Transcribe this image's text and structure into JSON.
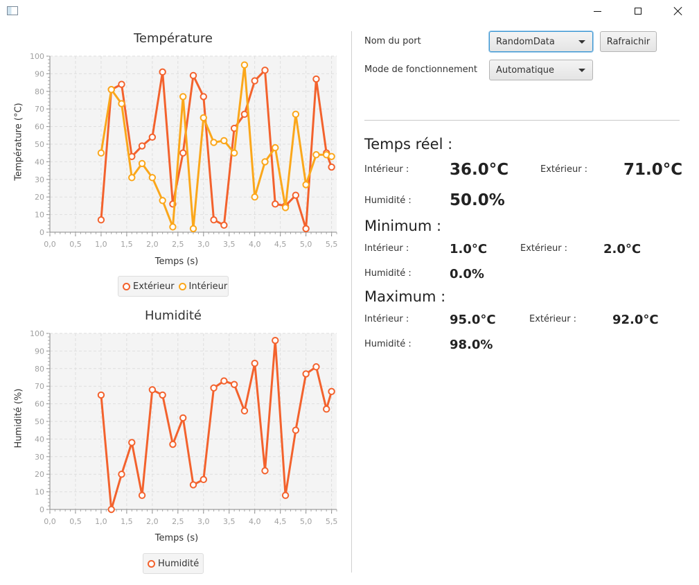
{
  "window": {
    "minimize": "",
    "maximize": "",
    "close": ""
  },
  "temp_chart": {
    "title": "Température",
    "xlabel": "Temps (s)",
    "ylabel": "Température (°C)",
    "legend": [
      "Extérieur",
      "Intérieur"
    ]
  },
  "hum_chart": {
    "title": "Humidité",
    "xlabel": "Temps (s)",
    "ylabel": "Humidité (%)",
    "legend": [
      "Humidité"
    ]
  },
  "controls": {
    "port_label": "Nom du port",
    "port_value": "RandomData",
    "refresh_label": "Rafraichir",
    "mode_label": "Mode de fonctionnement",
    "mode_value": "Automatique"
  },
  "realtime": {
    "title": "Temps réel :",
    "interior_label": "Intérieur :",
    "interior_value": "36.0°C",
    "exterior_label": "Extérieur :",
    "exterior_value": "71.0°C",
    "humidity_label": "Humidité :",
    "humidity_value": "50.0%"
  },
  "minimum": {
    "title": "Minimum :",
    "interior_label": "Intérieur :",
    "interior_value": "1.0°C",
    "exterior_label": "Extérieur :",
    "exterior_value": "2.0°C",
    "humidity_label": "Humidité :",
    "humidity_value": "0.0%"
  },
  "maximum": {
    "title": "Maximum :",
    "interior_label": "Intérieur :",
    "interior_value": "95.0°C",
    "exterior_label": "Extérieur :",
    "exterior_value": "92.0°C",
    "humidity_label": "Humidité :",
    "humidity_value": "98.0%"
  },
  "colors": {
    "exterior": "#f3622d",
    "interior": "#fba71b",
    "humidity": "#f3622d"
  },
  "chart_data": [
    {
      "type": "line",
      "title": "Température",
      "xlabel": "Temps (s)",
      "ylabel": "Température (°C)",
      "xlim": [
        0,
        5.6
      ],
      "ylim": [
        0,
        100
      ],
      "xticks": [
        "0,0",
        "0,5",
        "1,0",
        "1,5",
        "2,0",
        "2,5",
        "3,0",
        "3,5",
        "4,0",
        "4,5",
        "5,0",
        "5,5"
      ],
      "yticks": [
        "0",
        "10",
        "20",
        "30",
        "40",
        "50",
        "60",
        "70",
        "80",
        "90",
        "100"
      ],
      "grid": true,
      "legend": "bottom",
      "series": [
        {
          "name": "Extérieur",
          "color": "#f3622d",
          "x": [
            1.0,
            1.2,
            1.4,
            1.6,
            1.8,
            2.0,
            2.2,
            2.4,
            2.6,
            2.8,
            3.0,
            3.2,
            3.4,
            3.6,
            3.8,
            4.0,
            4.2,
            4.4,
            4.6,
            4.8,
            5.0,
            5.2,
            5.4,
            5.5
          ],
          "y": [
            7,
            81,
            84,
            43,
            49,
            54,
            91,
            16,
            45,
            89,
            77,
            7,
            4,
            59,
            67,
            86,
            92,
            16,
            15,
            21,
            2,
            87,
            45,
            37
          ]
        },
        {
          "name": "Intérieur",
          "color": "#fba71b",
          "x": [
            1.0,
            1.2,
            1.4,
            1.6,
            1.8,
            2.0,
            2.2,
            2.4,
            2.6,
            2.8,
            3.0,
            3.2,
            3.4,
            3.6,
            3.8,
            4.0,
            4.2,
            4.4,
            4.6,
            4.8,
            5.0,
            5.2,
            5.4,
            5.5
          ],
          "y": [
            45,
            81,
            73,
            31,
            39,
            31,
            18,
            3,
            77,
            2,
            65,
            51,
            52,
            45,
            95,
            20,
            40,
            48,
            14,
            67,
            27,
            44,
            44,
            43
          ]
        }
      ]
    },
    {
      "type": "line",
      "title": "Humidité",
      "xlabel": "Temps (s)",
      "ylabel": "Humidité (%)",
      "xlim": [
        0,
        5.6
      ],
      "ylim": [
        0,
        100
      ],
      "xticks": [
        "0,0",
        "0,5",
        "1,0",
        "1,5",
        "2,0",
        "2,5",
        "3,0",
        "3,5",
        "4,0",
        "4,5",
        "5,0",
        "5,5"
      ],
      "yticks": [
        "0",
        "10",
        "20",
        "30",
        "40",
        "50",
        "60",
        "70",
        "80",
        "90",
        "100"
      ],
      "grid": true,
      "legend": "bottom",
      "series": [
        {
          "name": "Humidité",
          "color": "#f3622d",
          "x": [
            1.0,
            1.2,
            1.4,
            1.6,
            1.8,
            2.0,
            2.2,
            2.4,
            2.6,
            2.8,
            3.0,
            3.2,
            3.4,
            3.6,
            3.8,
            4.0,
            4.2,
            4.4,
            4.6,
            4.8,
            5.0,
            5.2,
            5.4,
            5.5
          ],
          "y": [
            65,
            0,
            20,
            38,
            8,
            68,
            65,
            37,
            52,
            14,
            17,
            69,
            73,
            71,
            56,
            83,
            22,
            96,
            8,
            45,
            77,
            81,
            57,
            67
          ]
        }
      ]
    }
  ]
}
